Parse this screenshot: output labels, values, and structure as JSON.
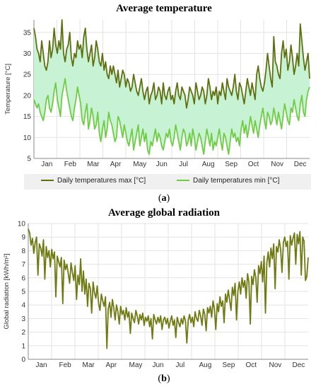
{
  "charts": [
    {
      "title": "Average temperature",
      "caption_letter": "a",
      "legend": {
        "max_label": "Daily temperatures max [°C]",
        "min_label": "Daily temperatures min [°C]"
      }
    },
    {
      "title": "Average global radiation",
      "caption_letter": "b"
    }
  ],
  "chart_data": [
    {
      "type": "area",
      "title": "Average temperature",
      "xlabel": "",
      "ylabel": "Temperature [°C]",
      "x_tick_labels": [
        "Jan",
        "Feb",
        "Mar",
        "Apr",
        "May",
        "Jun",
        "Jul",
        "Aug",
        "Sep",
        "Oct",
        "Nov",
        "Dec"
      ],
      "y_ticks": [
        5,
        10,
        15,
        20,
        25,
        30,
        35
      ],
      "ylim": [
        5,
        38
      ],
      "grid": true,
      "legend_position": "bottom",
      "fill_color": "#c8f2d4",
      "series": [
        {
          "name": "Daily temperatures max [°C]",
          "color": "#5f7010",
          "values": [
            36,
            34,
            31,
            30,
            28,
            33,
            30,
            27,
            26,
            28,
            33,
            29,
            31,
            36,
            32,
            30,
            33,
            31,
            38,
            30,
            28,
            31,
            32,
            35,
            29,
            27,
            30,
            29,
            33,
            31,
            32,
            29,
            34,
            36,
            31,
            28,
            30,
            32,
            27,
            29,
            33,
            31,
            28,
            27,
            30,
            26,
            28,
            25,
            24,
            27,
            25,
            27,
            25,
            23,
            26,
            22,
            24,
            26,
            25,
            22,
            24,
            23,
            21,
            22,
            25,
            23,
            21,
            20,
            22,
            24,
            21,
            19,
            21,
            22,
            18,
            20,
            21,
            23,
            19,
            20,
            22,
            21,
            18,
            23,
            20,
            19,
            21,
            22,
            19,
            20,
            18,
            21,
            23,
            20,
            19,
            22,
            21,
            20,
            17,
            19,
            22,
            21,
            20,
            18,
            23,
            21,
            19,
            20,
            22,
            21,
            18,
            20,
            24,
            22,
            19,
            21,
            20,
            22,
            18,
            21,
            20,
            23,
            21,
            19,
            24,
            22,
            21,
            20,
            22,
            25,
            21,
            19,
            23,
            22,
            20,
            18,
            21,
            24,
            22,
            20,
            23,
            21,
            19,
            25,
            27,
            24,
            22,
            21,
            23,
            26,
            30,
            27,
            24,
            22,
            34,
            28,
            27,
            25,
            24,
            30,
            33,
            29,
            31,
            26,
            28,
            32,
            29,
            25,
            27,
            30,
            27,
            37,
            33,
            29,
            26,
            28,
            30,
            24
          ]
        },
        {
          "name": "Daily temperatures min [°C]",
          "color": "#6fcd45",
          "values": [
            19,
            18,
            17,
            18,
            16,
            15,
            14,
            16,
            19,
            20,
            17,
            16,
            18,
            21,
            23,
            19,
            17,
            15,
            20,
            22,
            24,
            21,
            19,
            17,
            15,
            14,
            17,
            19,
            22,
            20,
            18,
            14,
            13,
            16,
            18,
            12,
            14,
            17,
            15,
            12,
            13,
            16,
            11,
            9,
            12,
            14,
            10,
            12,
            16,
            14,
            13,
            11,
            9,
            10,
            15,
            14,
            12,
            10,
            13,
            11,
            9,
            8,
            10,
            12,
            7,
            9,
            11,
            13,
            8,
            10,
            12,
            9,
            11,
            7,
            6,
            9,
            8,
            10,
            12,
            9,
            11,
            10,
            8,
            7,
            9,
            11,
            10,
            12,
            9,
            8,
            10,
            13,
            11,
            9,
            7,
            10,
            12,
            11,
            8,
            9,
            11,
            8,
            12,
            10,
            7,
            9,
            11,
            10,
            8,
            6,
            9,
            12,
            10,
            8,
            11,
            7,
            9,
            8,
            10,
            12,
            9,
            7,
            11,
            10,
            8,
            6,
            9,
            12,
            10,
            11,
            9,
            10,
            8,
            12,
            14,
            11,
            13,
            10,
            12,
            15,
            13,
            11,
            14,
            12,
            10,
            13,
            15,
            17,
            14,
            12,
            16,
            15,
            13,
            14,
            17,
            15,
            13,
            16,
            14,
            12,
            15,
            18,
            16,
            14,
            13,
            17,
            16,
            19,
            17,
            15,
            14,
            18,
            20,
            16,
            15,
            19,
            21,
            22
          ]
        }
      ]
    },
    {
      "type": "line",
      "title": "Average global radiation",
      "xlabel": "",
      "ylabel": "Global radiation [kWh/m²]",
      "x_tick_labels": [
        "Jan",
        "Feb",
        "Mar",
        "Apr",
        "May",
        "Jun",
        "Jul",
        "Aug",
        "Sep",
        "Oct",
        "Nov",
        "Dec"
      ],
      "y_ticks": [
        0,
        1,
        2,
        3,
        4,
        5,
        6,
        7,
        8,
        9,
        10
      ],
      "ylim": [
        0,
        10
      ],
      "grid": true,
      "series": [
        {
          "color": "#6f7a12",
          "values": [
            9.6,
            9.3,
            8.4,
            8.9,
            7.8,
            8.6,
            9.0,
            6.2,
            8.5,
            8.2,
            7.6,
            8.8,
            5.9,
            8.3,
            7.5,
            8.0,
            6.8,
            8.1,
            7.4,
            7.9,
            4.6,
            7.6,
            7.2,
            6.8,
            7.5,
            4.1,
            7.3,
            6.6,
            7.0,
            6.3,
            5.6,
            7.1,
            6.4,
            5.8,
            6.9,
            4.4,
            6.2,
            5.5,
            7.4,
            5.0,
            6.5,
            4.8,
            5.9,
            3.9,
            5.6,
            5.2,
            3.4,
            5.7,
            4.9,
            4.5,
            5.4,
            4.1,
            3.6,
            4.8,
            4.3,
            3.9,
            4.6,
            0.8,
            3.7,
            4.2,
            3.1,
            4.4,
            3.8,
            2.9,
            4.0,
            3.5,
            2.6,
            3.9,
            3.3,
            3.6,
            2.9,
            3.8,
            3.1,
            3.5,
            1.9,
            3.4,
            3.0,
            2.7,
            3.6,
            3.2,
            2.6,
            3.3,
            2.9,
            3.4,
            2.5,
            3.1,
            2.8,
            3.2,
            2.4,
            3.0,
            1.5,
            3.3,
            2.9,
            2.6,
            3.1,
            2.7,
            3.2,
            2.2,
            2.9,
            3.1,
            2.6,
            3.0,
            2.3,
            2.8,
            3.2,
            2.5,
            2.9,
            1.6,
            3.1,
            2.7,
            2.4,
            3.0,
            2.6,
            3.2,
            2.8,
            1.2,
            2.9,
            3.3,
            2.7,
            3.1,
            2.4,
            3.5,
            3.0,
            2.8,
            3.6,
            3.2,
            2.5,
            3.7,
            3.3,
            2.1,
            3.8,
            3.4,
            3.9,
            3.1,
            4.3,
            3.7,
            2.2,
            4.1,
            3.5,
            4.6,
            3.9,
            4.3,
            2.7,
            4.8,
            4.2,
            5.1,
            4.4,
            3.6,
            5.3,
            4.7,
            5.6,
            2.9,
            5.0,
            5.7,
            4.8,
            6.0,
            5.3,
            5.8,
            4.5,
            6.3,
            5.7,
            2.6,
            6.1,
            5.5,
            6.6,
            6.0,
            4.2,
            6.9,
            6.3,
            7.2,
            5.7,
            7.6,
            3.4,
            7.1,
            7.9,
            6.8,
            8.2,
            7.4,
            8.5,
            5.2,
            8.3,
            7.9,
            8.8,
            8.1,
            6.4,
            8.6,
            9.0,
            8.3,
            8.7,
            5.9,
            9.1,
            8.4,
            8.9,
            9.3,
            7.0,
            9.2,
            8.5,
            9.4,
            6.2,
            9.0,
            8.7,
            5.8,
            6.1,
            7.5
          ]
        }
      ]
    }
  ]
}
